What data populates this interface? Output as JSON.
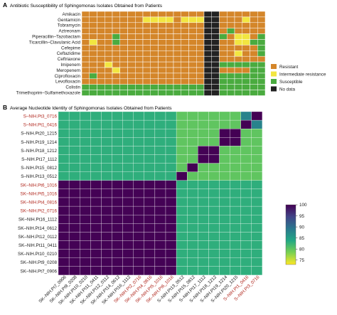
{
  "panel_a": {
    "letter": "A",
    "title": "Antibiotic Susceptibility of Sphingomonas Isolates Obtained from Patients"
  },
  "panel_b": {
    "letter": "B",
    "title": "Average Nucleotide Identity of Sphingomonas Isolates Obtained from Patients"
  },
  "colors": {
    "resistant": "#d4862a",
    "intermediate": "#f2e640",
    "susceptible": "#4aab3f",
    "no_data": "#222222",
    "gridline": "#ffffff",
    "red_label": "#b0261c",
    "black_label": "#1a1a1a"
  },
  "chart_data": [
    {
      "type": "heatmap",
      "title": "Antibiotic Susceptibility of Sphingomonas Isolates Obtained from Patients",
      "rows": [
        "Amikacin",
        "Gentamicin",
        "Tobramycin",
        "Aztreonam",
        "Piperacillin–Tazobactam",
        "Ticarcillin–Clavulanic Acid",
        "Cefepime",
        "Ceftazidime",
        "Ceftriaxone",
        "Imipenem",
        "Meropenem",
        "Ciprofloxacin",
        "Levofloxacin",
        "Colistin",
        "Trimethoprim–Sulfamethoxazole"
      ],
      "columns": 24,
      "codes": {
        "R": "Resistant",
        "I": "Intermediate resistance",
        "S": "Susceptible",
        "N": "No data"
      },
      "matrix": [
        "RRRRRRRRRRRRRRRRNNRRRRRR",
        "RRRRRRRRIIIIRIIINNRRRIRR",
        "RRRRRRRRRRRRRRRRNNRRRRRR",
        "RRRRRRRRRRRRRRRRNNRSRRRR",
        "RRRRSRRRRRRRRRRRNNSRIIRS",
        "RIRRSRRRRRRRRRRRNNRRIISS",
        "RRRRRRRRRRRRRRRRNNRRRRRS",
        "RRRRRRRRRRRRRRRRNNRRIRRS",
        "RRRRRRRRRRRRRRRRNNRRRRRR",
        "RRRIRRRRRRRRRRRRNNSSSSSS",
        "RRRRIRRRRRRRRRRRNNRRRRSS",
        "RSRRRRRRRRRRRRRRNNSSSSSS",
        "RRRRRRRRRRRRRRRRNNSSSSSS",
        "SSSSSSSSSSSSSSSSNNSSSSSS",
        "SSSSSSSSSSSSSSSSNNSSSSSS"
      ],
      "legend": [
        {
          "code": "R",
          "label": "Resistant"
        },
        {
          "code": "I",
          "label": "Intermediate resistance"
        },
        {
          "code": "S",
          "label": "Susceptible"
        },
        {
          "code": "N",
          "label": "No data"
        }
      ],
      "legend_placement": "right"
    },
    {
      "type": "heatmap",
      "title": "Average Nucleotide Identity of Sphingomonas Isolates Obtained from Patients",
      "row_labels": [
        {
          "text": "S–NIH.Pt3_0716",
          "red": true
        },
        {
          "text": "S–NIH.Pt1_0416",
          "red": true
        },
        {
          "text": "S–NIH.Pt20_1215",
          "red": false
        },
        {
          "text": "S–NIH.Pt19_1214",
          "red": false
        },
        {
          "text": "S–NIH.Pt18_1212",
          "red": false
        },
        {
          "text": "S–NIH.Pt17_1112",
          "red": false
        },
        {
          "text": "S–NIH.Pt15_0812",
          "red": false
        },
        {
          "text": "S–NIH.Pt13_0512",
          "red": false
        },
        {
          "text": "SK–NIH.Pt6_1016",
          "red": true
        },
        {
          "text": "SK–NIH.Pt5_1016",
          "red": true
        },
        {
          "text": "SK–NIH.Pt4_0816",
          "red": true
        },
        {
          "text": "SK–NIH.Pt2_0716",
          "red": true
        },
        {
          "text": "SK–NIH.Pt16_1112",
          "red": false
        },
        {
          "text": "SK–NIH.Pt14_0612",
          "red": false
        },
        {
          "text": "SK–NIH.Pt12_0112",
          "red": false
        },
        {
          "text": "SK–NIH.Pt11_0411",
          "red": false
        },
        {
          "text": "SK–NIH.Pt10_0210",
          "red": false
        },
        {
          "text": "SK–NIH.Pt9_0208",
          "red": false
        },
        {
          "text": "SK–NIH.Pt7_0906",
          "red": false
        }
      ],
      "column_labels": [
        {
          "text": "SK–NIH.Pt7_0906",
          "red": false
        },
        {
          "text": "SK–NIH.Pt9_0208",
          "red": false
        },
        {
          "text": "SK–NIH.Pt10_0210",
          "red": false
        },
        {
          "text": "SK–NIH.Pt11_0411",
          "red": false
        },
        {
          "text": "SK–NIH.Pt12_0112",
          "red": false
        },
        {
          "text": "SK–NIH.Pt14_0612",
          "red": false
        },
        {
          "text": "SK–NIH.Pt16_1112",
          "red": false
        },
        {
          "text": "SK–NIH.Pt2_0716",
          "red": true
        },
        {
          "text": "SK–NIH.Pt4_0816",
          "red": true
        },
        {
          "text": "SK–NIH.Pt5_1016",
          "red": true
        },
        {
          "text": "SK–NIH.Pt6_1016",
          "red": true
        },
        {
          "text": "S–NIH.Pt13_0512",
          "red": false
        },
        {
          "text": "S–NIH.Pt15_0812",
          "red": false
        },
        {
          "text": "S–NIH.Pt17_1112",
          "red": false
        },
        {
          "text": "S–NIH.Pt18_1212",
          "red": false
        },
        {
          "text": "S–NIH.Pt19_1214",
          "red": false
        },
        {
          "text": "S–NIH.Pt20_1215",
          "red": false
        },
        {
          "text": "S–NIH.Pt1_0416",
          "red": true
        },
        {
          "text": "S–NIH.Pt3_0716",
          "red": true
        }
      ],
      "group_ani": {
        "SK_vs_SK": 99.9,
        "S_vs_SK": 83,
        "S_vs_S": 80,
        "S_self": 100,
        "S_pt20_vs_pt19": 99.9,
        "S_pt17_vs_pt18": 99.9,
        "S_pt1_vs_pt3": 88
      },
      "colorbar": {
        "min": 73,
        "max": 100,
        "ticks": [
          75,
          80,
          85,
          90,
          95,
          100
        ],
        "colormap": "viridis",
        "placement": "right"
      }
    }
  ]
}
